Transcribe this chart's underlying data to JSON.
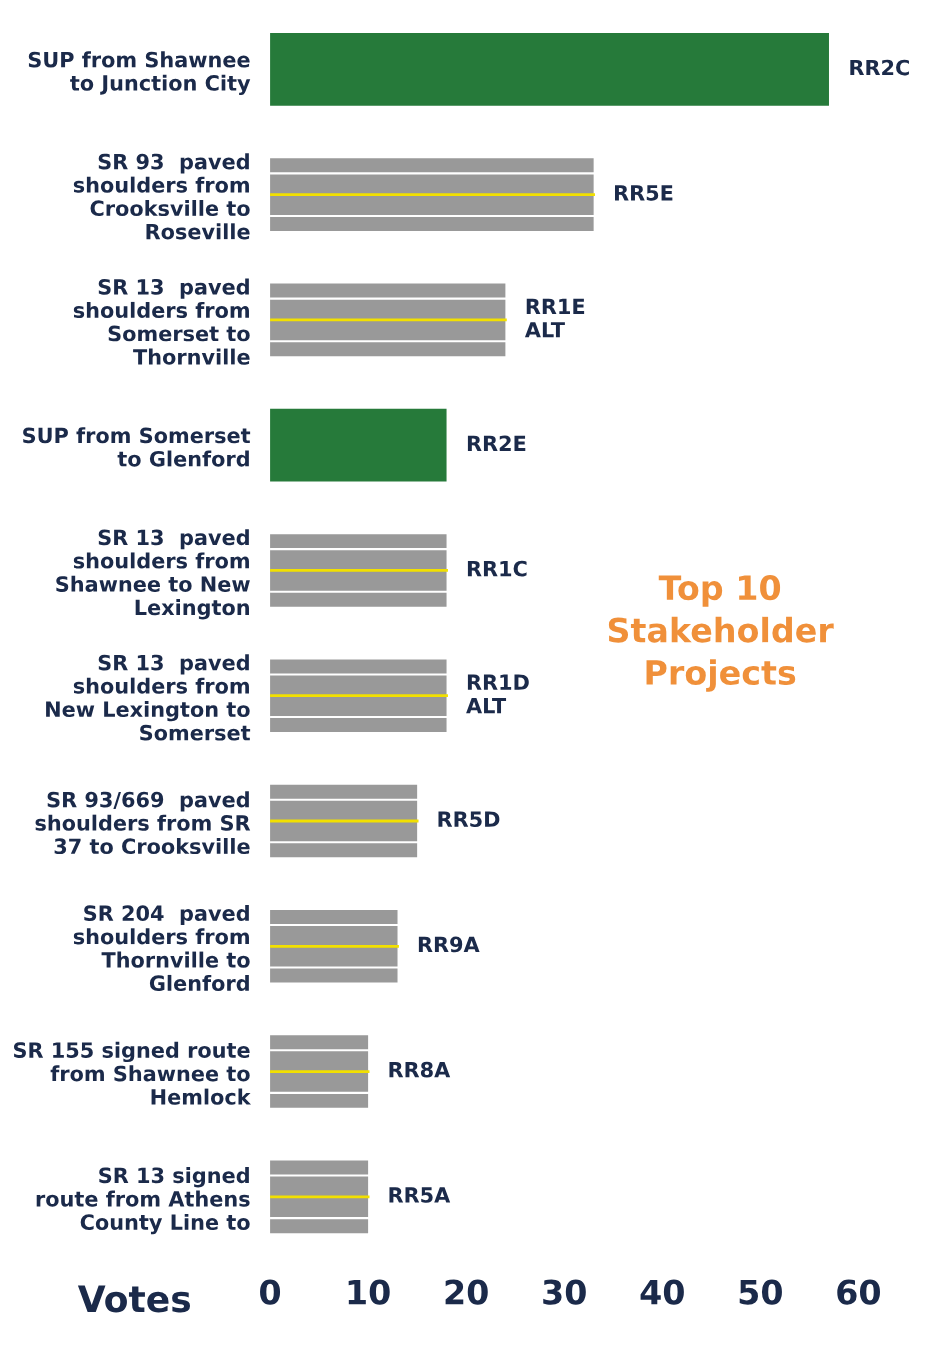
{
  "chart_data": {
    "type": "bar",
    "orientation": "horizontal",
    "title": "Top 10\nStakeholder\nProjects",
    "xlabel": "Votes",
    "categories": [
      "SUP from Shawnee\nto Junction City",
      "SR 93  paved\nshoulders from\nCrooksville to\nRoseville",
      "SR 13  paved\nshoulders from\nSomerset to\nThornville",
      "SUP from Somerset\nto Glenford",
      "SR 13  paved\nshoulders from\nShawnee to New\nLexington",
      "SR 13  paved\nshoulders from\nNew Lexington to\nSomerset",
      "SR 93/669  paved\nshoulders from SR\n37 to Crooksville",
      "SR 204  paved\nshoulders from\nThornville to\nGlenford",
      "SR 155 signed route\nfrom Shawnee to\nHemlock",
      "SR 13 signed\nroute from Athens\nCounty Line to"
    ],
    "values": [
      57,
      33,
      24,
      18,
      18,
      18,
      15,
      13,
      10,
      10
    ],
    "colors": [
      "#267a3a",
      "#999999",
      "#999999",
      "#267a3a",
      "#999999",
      "#999999",
      "#999999",
      "#999999",
      "#999999",
      "#999999"
    ],
    "value_labels": [
      "RR2C",
      "RR5E",
      "RR1E\nALT",
      "RR2E",
      "RR1C",
      "RR1D\nALT",
      "RR5D",
      "RR9A",
      "RR8A",
      "RR5A"
    ],
    "xlim": [
      0,
      60
    ],
    "xticks": [
      0,
      10,
      20,
      30,
      40,
      50,
      60
    ],
    "grid": false,
    "legend": false
  }
}
